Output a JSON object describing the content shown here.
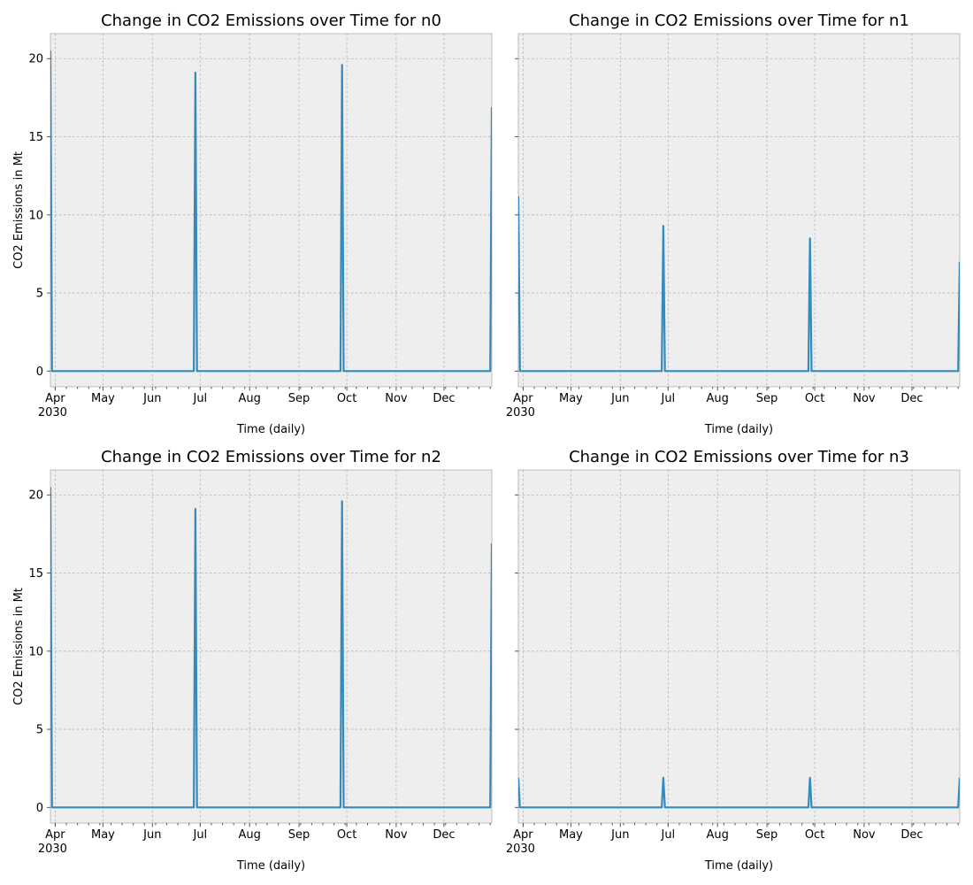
{
  "colors": {
    "series": "#348abd",
    "background": "#eeeeee",
    "grid": "#b2b2b2"
  },
  "chart_data": [
    {
      "type": "line",
      "title": "Change in CO2 Emissions over Time for n0",
      "xlabel": "Time (daily)",
      "ylabel": "CO2 Emissions in Mt",
      "xlim": [
        "2030-03-29",
        "2030-12-31"
      ],
      "ylim": [
        -1,
        21.6
      ],
      "yticks": [
        0,
        5,
        10,
        15,
        20
      ],
      "xticks": [
        {
          "date": "2030-04-01",
          "label": "Apr",
          "sublabel": "2030"
        },
        {
          "date": "2030-05-01",
          "label": "May"
        },
        {
          "date": "2030-06-01",
          "label": "Jun"
        },
        {
          "date": "2030-07-01",
          "label": "Jul"
        },
        {
          "date": "2030-08-01",
          "label": "Aug"
        },
        {
          "date": "2030-09-01",
          "label": "Sep"
        },
        {
          "date": "2030-10-01",
          "label": "Oct"
        },
        {
          "date": "2030-11-01",
          "label": "Nov"
        },
        {
          "date": "2030-12-01",
          "label": "Dec"
        }
      ],
      "grid": true,
      "series": [
        {
          "x": [
            "2030-03-29",
            "2030-03-30",
            "2030-06-27",
            "2030-06-28",
            "2030-06-29",
            "2030-09-27",
            "2030-09-28",
            "2030-09-29",
            "2030-12-30",
            "2030-12-31"
          ],
          "y": [
            20.5,
            0,
            0,
            19.1,
            0,
            0,
            19.6,
            0,
            0,
            16.9
          ]
        }
      ]
    },
    {
      "type": "line",
      "title": "Change in CO2 Emissions over Time for n1",
      "xlabel": "Time (daily)",
      "ylabel": "",
      "xlim": [
        "2030-03-29",
        "2030-12-31"
      ],
      "ylim": [
        -1,
        21.6
      ],
      "yticks": [
        0,
        5,
        10,
        15,
        20
      ],
      "xticks": [
        {
          "date": "2030-04-01",
          "label": "Apr",
          "sublabel": "2030"
        },
        {
          "date": "2030-05-01",
          "label": "May"
        },
        {
          "date": "2030-06-01",
          "label": "Jun"
        },
        {
          "date": "2030-07-01",
          "label": "Jul"
        },
        {
          "date": "2030-08-01",
          "label": "Aug"
        },
        {
          "date": "2030-09-01",
          "label": "Sep"
        },
        {
          "date": "2030-10-01",
          "label": "Oct"
        },
        {
          "date": "2030-11-01",
          "label": "Nov"
        },
        {
          "date": "2030-12-01",
          "label": "Dec"
        }
      ],
      "grid": true,
      "series": [
        {
          "x": [
            "2030-03-29",
            "2030-03-30",
            "2030-06-27",
            "2030-06-28",
            "2030-06-29",
            "2030-09-27",
            "2030-09-28",
            "2030-09-29",
            "2030-12-30",
            "2030-12-31"
          ],
          "y": [
            11.2,
            0,
            0,
            9.3,
            0,
            0,
            8.5,
            0,
            0,
            7.0
          ]
        }
      ]
    },
    {
      "type": "line",
      "title": "Change in CO2 Emissions over Time for n2",
      "xlabel": "Time (daily)",
      "ylabel": "CO2 Emissions in Mt",
      "xlim": [
        "2030-03-29",
        "2030-12-31"
      ],
      "ylim": [
        -1,
        21.6
      ],
      "yticks": [
        0,
        5,
        10,
        15,
        20
      ],
      "xticks": [
        {
          "date": "2030-04-01",
          "label": "Apr",
          "sublabel": "2030"
        },
        {
          "date": "2030-05-01",
          "label": "May"
        },
        {
          "date": "2030-06-01",
          "label": "Jun"
        },
        {
          "date": "2030-07-01",
          "label": "Jul"
        },
        {
          "date": "2030-08-01",
          "label": "Aug"
        },
        {
          "date": "2030-09-01",
          "label": "Sep"
        },
        {
          "date": "2030-10-01",
          "label": "Oct"
        },
        {
          "date": "2030-11-01",
          "label": "Nov"
        },
        {
          "date": "2030-12-01",
          "label": "Dec"
        }
      ],
      "grid": true,
      "series": [
        {
          "x": [
            "2030-03-29",
            "2030-03-30",
            "2030-06-27",
            "2030-06-28",
            "2030-06-29",
            "2030-09-27",
            "2030-09-28",
            "2030-09-29",
            "2030-12-30",
            "2030-12-31"
          ],
          "y": [
            20.5,
            0,
            0,
            19.1,
            0,
            0,
            19.6,
            0,
            0,
            16.9
          ]
        }
      ]
    },
    {
      "type": "line",
      "title": "Change in CO2 Emissions over Time for n3",
      "xlabel": "Time (daily)",
      "ylabel": "",
      "xlim": [
        "2030-03-29",
        "2030-12-31"
      ],
      "ylim": [
        -1,
        21.6
      ],
      "yticks": [
        0,
        5,
        10,
        15,
        20
      ],
      "xticks": [
        {
          "date": "2030-04-01",
          "label": "Apr",
          "sublabel": "2030"
        },
        {
          "date": "2030-05-01",
          "label": "May"
        },
        {
          "date": "2030-06-01",
          "label": "Jun"
        },
        {
          "date": "2030-07-01",
          "label": "Jul"
        },
        {
          "date": "2030-08-01",
          "label": "Aug"
        },
        {
          "date": "2030-09-01",
          "label": "Sep"
        },
        {
          "date": "2030-10-01",
          "label": "Oct"
        },
        {
          "date": "2030-11-01",
          "label": "Nov"
        },
        {
          "date": "2030-12-01",
          "label": "Dec"
        }
      ],
      "grid": true,
      "series": [
        {
          "x": [
            "2030-03-29",
            "2030-03-30",
            "2030-06-27",
            "2030-06-28",
            "2030-06-29",
            "2030-09-27",
            "2030-09-28",
            "2030-09-29",
            "2030-12-30",
            "2030-12-31"
          ],
          "y": [
            1.9,
            0,
            0,
            1.9,
            0,
            0,
            1.9,
            0,
            0,
            1.9
          ]
        }
      ]
    }
  ]
}
